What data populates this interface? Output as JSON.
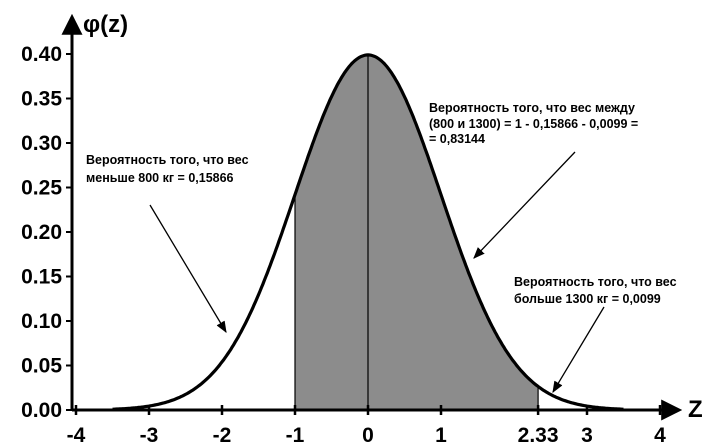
{
  "chart_data": {
    "type": "area",
    "title": "",
    "ylabel": "φ(z)",
    "xlabel": "Z",
    "xlim": [
      -4.4,
      4.6
    ],
    "ylim": [
      0,
      0.42
    ],
    "x_ticks": [
      -4,
      -3,
      -2,
      -1,
      0,
      1,
      2.33,
      3,
      4
    ],
    "x_tick_labels": [
      "-4",
      "-3",
      "-2",
      "-1",
      "0",
      "1",
      "2.33",
      "3",
      "4"
    ],
    "y_ticks": [
      0.0,
      0.05,
      0.1,
      0.15,
      0.2,
      0.25,
      0.3,
      0.35,
      0.4
    ],
    "y_tick_labels": [
      "0.00",
      "0.05",
      "0.10",
      "0.15",
      "0.20",
      "0.25",
      "0.30",
      "0.35",
      "0.40"
    ],
    "grid": false,
    "curve": {
      "distribution": "standard normal",
      "x": [
        -3.5,
        -3.0,
        -2.5,
        -2.0,
        -1.5,
        -1.0,
        -0.5,
        0.0,
        0.5,
        1.0,
        1.5,
        2.0,
        2.33,
        2.5,
        3.0,
        3.5
      ],
      "y": [
        0.0009,
        0.0044,
        0.0175,
        0.054,
        0.1295,
        0.242,
        0.3521,
        0.3989,
        0.3521,
        0.242,
        0.1295,
        0.054,
        0.0264,
        0.0175,
        0.0044,
        0.0009
      ]
    },
    "shaded_region": {
      "from": -1,
      "to": 2.33,
      "color": "#8c8c8c"
    },
    "annotations": [
      {
        "id": "left",
        "lines": [
          "Вероятность того, что вес",
          "меньше 800 кг = 0,15866"
        ],
        "points_to": {
          "x": -1.8,
          "y": 0.07
        }
      },
      {
        "id": "middle",
        "lines": [
          "Вероятность того, что вес между",
          "(800 и 1300) = 1 - 0,15866 - 0,0099 =",
          "= 0,83144"
        ],
        "points_to": {
          "x": 1.4,
          "y": 0.2
        }
      },
      {
        "id": "right",
        "lines": [
          "Вероятность того, что вес",
          "больше   1300 кг = 0,0099"
        ],
        "points_to": {
          "x": 2.5,
          "y": 0.02
        }
      }
    ],
    "colors": {
      "curve": "#000000",
      "fill": "#8c8c8c",
      "axis": "#000000"
    }
  }
}
